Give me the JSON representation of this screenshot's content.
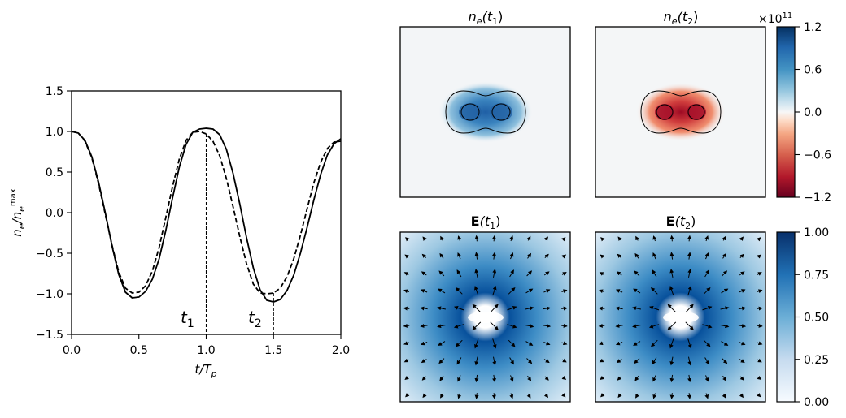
{
  "colors": {
    "positive": "#08306b",
    "negative": "#67001f",
    "fieldmax": "#08306b",
    "frame": "#000000"
  },
  "chart_data": [
    {
      "type": "line",
      "x_min": 0.0,
      "x_max": 2.0,
      "ylim": [
        -1.5,
        1.5
      ],
      "xticks": [
        "0.0",
        "0.5",
        "1.0",
        "1.5",
        "2.0"
      ],
      "yticks": [
        "1.5",
        "1.0",
        "0.5",
        "0.0",
        "−0.5",
        "−1.0",
        "−1.5"
      ],
      "series": [
        {
          "style": "solid",
          "x": [
            0,
            0.05,
            0.1,
            0.15,
            0.2,
            0.25,
            0.3,
            0.35,
            0.4,
            0.45,
            0.5,
            0.55,
            0.6,
            0.65,
            0.7,
            0.75,
            0.8,
            0.85,
            0.9,
            0.95,
            1.0,
            1.05,
            1.1,
            1.15,
            1.2,
            1.25,
            1.3,
            1.35,
            1.4,
            1.45,
            1.5,
            1.55,
            1.6,
            1.65,
            1.7,
            1.75,
            1.8,
            1.85,
            1.9,
            1.95,
            2.0
          ],
          "y": [
            1.0,
            0.98,
            0.89,
            0.69,
            0.38,
            0.0,
            -0.41,
            -0.76,
            -0.98,
            -1.05,
            -1.04,
            -0.97,
            -0.82,
            -0.57,
            -0.22,
            0.18,
            0.56,
            0.84,
            0.99,
            1.03,
            1.04,
            1.03,
            0.96,
            0.78,
            0.48,
            0.1,
            -0.31,
            -0.68,
            -0.95,
            -1.08,
            -1.1,
            -1.07,
            -0.96,
            -0.77,
            -0.5,
            -0.18,
            0.16,
            0.47,
            0.71,
            0.85,
            0.91
          ]
        },
        {
          "style": "dashed",
          "x": [
            0,
            0.05,
            0.1,
            0.15,
            0.2,
            0.25,
            0.3,
            0.35,
            0.4,
            0.45,
            0.5,
            0.55,
            0.6,
            0.65,
            0.7,
            0.75,
            0.8,
            0.85,
            0.9,
            0.95,
            1.0,
            1.05,
            1.1,
            1.15,
            1.2,
            1.25,
            1.3,
            1.35,
            1.4,
            1.45,
            1.5,
            1.55,
            1.6,
            1.65,
            1.7,
            1.75,
            1.8,
            1.85,
            1.9,
            1.95,
            2.0
          ],
          "y": [
            1.0,
            0.98,
            0.88,
            0.68,
            0.36,
            -0.02,
            -0.4,
            -0.73,
            -0.93,
            -0.99,
            -0.98,
            -0.9,
            -0.72,
            -0.43,
            -0.06,
            0.32,
            0.66,
            0.89,
            0.99,
            1.0,
            0.97,
            0.88,
            0.7,
            0.42,
            0.07,
            -0.3,
            -0.63,
            -0.88,
            -0.99,
            -1.0,
            -0.99,
            -0.93,
            -0.79,
            -0.57,
            -0.28,
            0.05,
            0.37,
            0.62,
            0.79,
            0.87,
            0.88
          ]
        }
      ],
      "markers": [
        {
          "x": 1.0,
          "label_main": "t",
          "label_sub": "1"
        },
        {
          "x": 1.5,
          "label_main": "t",
          "label_sub": "2"
        }
      ],
      "xlabel": {
        "main": "t/T",
        "sub": "p"
      },
      "ylabel": {
        "main": "n",
        "sub": "e",
        "slash": "/n",
        "sub2": "e",
        "sup": "max"
      }
    },
    {
      "type": "heatmap",
      "id": "ne-t1",
      "title": {
        "main": "n",
        "sub": "e",
        "arg": "(t",
        "arg_sub": "1",
        "close": ")"
      },
      "sign": "positive",
      "peak": 1.2
    },
    {
      "type": "heatmap",
      "id": "ne-t2",
      "title": {
        "main": "n",
        "sub": "e",
        "arg": "(t",
        "arg_sub": "2",
        "close": ")"
      },
      "sign": "negative",
      "peak": -1.2
    },
    {
      "type": "heatmap",
      "id": "E-t1",
      "title": {
        "main": "E",
        "arg": "(t",
        "arg_sub": "1",
        "close": ")"
      },
      "field": "quiver"
    },
    {
      "type": "heatmap",
      "id": "E-t2",
      "title": {
        "main": "E",
        "arg": "(t",
        "arg_sub": "2",
        "close": ")"
      },
      "field": "quiver"
    }
  ],
  "colorbars": {
    "density": {
      "ticks": [
        "1.2",
        "0.6",
        "0.0",
        "−0.6",
        "−1.2"
      ],
      "vmin": -1.2,
      "vmax": 1.2,
      "multiplier": {
        "base": "×10",
        "exp": "11"
      }
    },
    "field": {
      "ticks": [
        "1.00",
        "0.75",
        "0.50",
        "0.25",
        "0.00"
      ],
      "vmin": 0,
      "vmax": 1
    }
  }
}
